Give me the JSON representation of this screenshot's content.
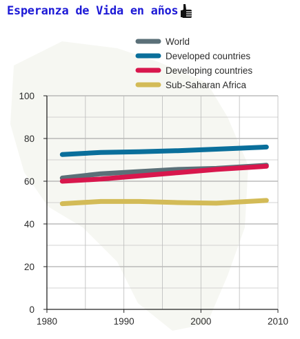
{
  "page": {
    "heading": "Esperanza de Vida en años",
    "heading_icon": "thumbs-up-icon",
    "heading_color": "#1c19d6"
  },
  "chart_data": {
    "type": "line",
    "title": "",
    "xlabel": "",
    "ylabel": "",
    "xlim": [
      1980,
      2010
    ],
    "ylim": [
      0,
      100
    ],
    "xticks": [
      1980,
      1990,
      2000,
      2010
    ],
    "yticks": [
      0,
      20,
      40,
      60,
      80,
      100
    ],
    "grid": true,
    "legend_position": "top-right",
    "series": [
      {
        "name": "World",
        "color": "#5b7078",
        "x": [
          1982,
          1987,
          1992,
          1997,
          2002,
          2008.5
        ],
        "y": [
          61.5,
          63.5,
          64.5,
          65.5,
          66,
          67.5
        ]
      },
      {
        "name": "Developed countries",
        "color": "#0a6f9b",
        "x": [
          1982,
          1987,
          1992,
          1997,
          2002,
          2008.5
        ],
        "y": [
          72.5,
          73.5,
          73.8,
          74.3,
          75,
          76
        ]
      },
      {
        "name": "Developing countries",
        "color": "#d8174d",
        "x": [
          1982,
          1987,
          1992,
          1997,
          2002,
          2008.5
        ],
        "y": [
          60,
          61,
          62.5,
          64,
          65.5,
          67
        ]
      },
      {
        "name": "Sub-Saharan Africa",
        "color": "#d3bb57",
        "x": [
          1982,
          1987,
          1992,
          1997,
          2002,
          2008.5
        ],
        "y": [
          49.5,
          50.5,
          50.5,
          50,
          49.7,
          51
        ]
      }
    ]
  }
}
